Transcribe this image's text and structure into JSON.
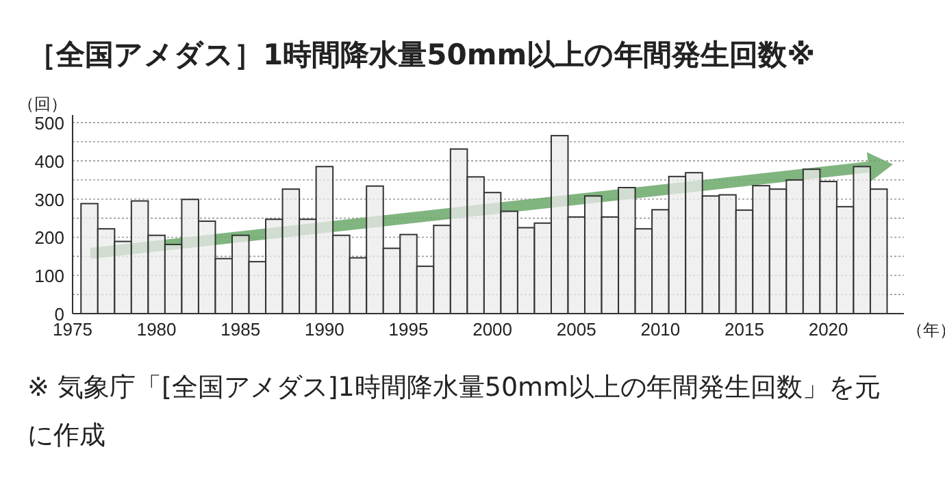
{
  "chart_data": {
    "type": "bar",
    "title": "［全国アメダス］1時間降水量50mm以上の年間発生回数※",
    "xlabel": "（年）",
    "ylabel": "（回）",
    "x": [
      1976,
      1977,
      1978,
      1979,
      1980,
      1981,
      1982,
      1983,
      1984,
      1985,
      1986,
      1987,
      1988,
      1989,
      1990,
      1991,
      1992,
      1993,
      1994,
      1995,
      1996,
      1997,
      1998,
      1999,
      2000,
      2001,
      2002,
      2003,
      2004,
      2005,
      2006,
      2007,
      2008,
      2009,
      2010,
      2011,
      2012,
      2013,
      2014,
      2015,
      2016,
      2017,
      2018,
      2019,
      2020,
      2021,
      2022,
      2023
    ],
    "series": [
      {
        "color": "#ebebeb",
        "values": [
          288,
          222,
          189,
          295,
          205,
          181,
          299,
          242,
          144,
          205,
          136,
          247,
          326,
          247,
          385,
          205,
          146,
          334,
          171,
          207,
          124,
          231,
          431,
          358,
          317,
          268,
          225,
          237,
          466,
          253,
          308,
          253,
          330,
          222,
          272,
          359,
          369,
          308,
          311,
          271,
          335,
          326,
          350,
          378,
          346,
          280,
          385,
          326
        ]
      }
    ],
    "xlim": [
      1975,
      2024.5
    ],
    "ylim": [
      0,
      520
    ],
    "xticks": [
      1975,
      1980,
      1985,
      1990,
      1995,
      2000,
      2005,
      2010,
      2015,
      2020
    ],
    "yticks": [
      0,
      {
        "value": 50,
        "label": null
      },
      100,
      {
        "value": 150,
        "label": null
      },
      200,
      {
        "value": 250,
        "label": null
      },
      300,
      {
        "value": 350,
        "label": null
      },
      400,
      {
        "value": 450,
        "label": null
      },
      500
    ],
    "grid": "y",
    "annotations": [
      "※ 気象庁「[全国アメダス]1時間降水量50mm以上の年間発生回数」を元に作成"
    ]
  }
}
